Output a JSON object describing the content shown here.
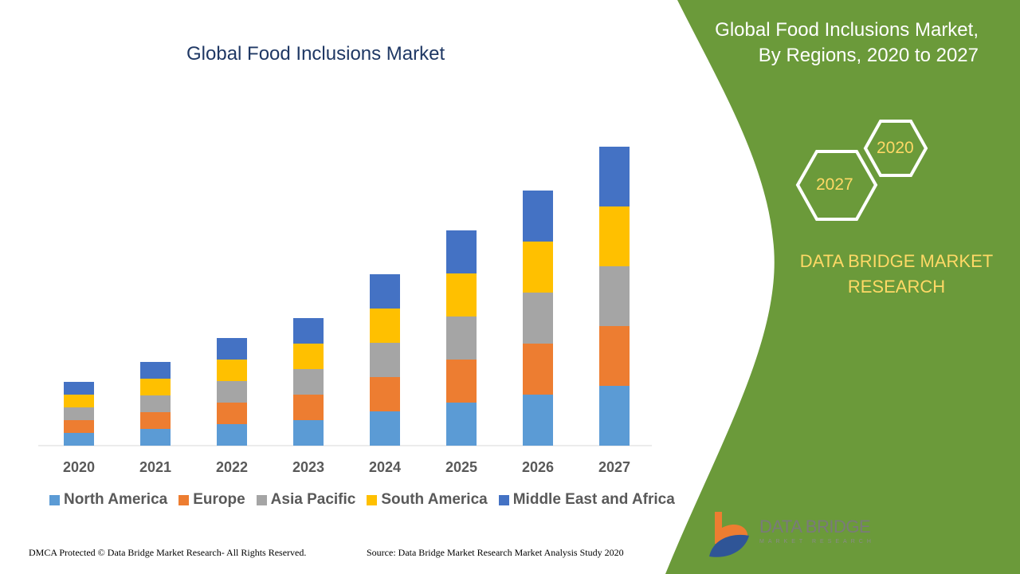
{
  "chart_data": {
    "type": "bar",
    "stacked": true,
    "title": "Global Food Inclusions Market",
    "categories": [
      "2020",
      "2021",
      "2022",
      "2023",
      "2024",
      "2025",
      "2026",
      "2027"
    ],
    "series": [
      {
        "name": "North America",
        "color": "#5b9bd5",
        "values": [
          1.6,
          2.1,
          2.7,
          3.2,
          4.3,
          5.4,
          6.4,
          7.5
        ]
      },
      {
        "name": "Europe",
        "color": "#ed7d31",
        "values": [
          1.6,
          2.1,
          2.7,
          3.2,
          4.3,
          5.4,
          6.4,
          7.5
        ]
      },
      {
        "name": "Asia Pacific",
        "color": "#a5a5a5",
        "values": [
          1.6,
          2.1,
          2.7,
          3.2,
          4.3,
          5.4,
          6.4,
          7.5
        ]
      },
      {
        "name": "South America",
        "color": "#ffc000",
        "values": [
          1.6,
          2.1,
          2.7,
          3.2,
          4.3,
          5.4,
          6.4,
          7.5
        ]
      },
      {
        "name": "Middle East and Africa",
        "color": "#4472c4",
        "values": [
          1.6,
          2.1,
          2.7,
          3.2,
          4.3,
          5.4,
          6.4,
          7.5
        ]
      }
    ],
    "xlabel": "",
    "ylabel": "",
    "grid": false,
    "legend": "bottom",
    "y_axis_shown": false
  },
  "side_panel": {
    "title_line1": "Global Food Inclusions Market,",
    "title_line2": "By Regions, 2020 to 2027",
    "hex_start": "2020",
    "hex_end": "2027",
    "brand_line1": "DATA BRIDGE MARKET",
    "brand_line2": "RESEARCH",
    "color": "#6b9a3a"
  },
  "footer": {
    "copyright": "DMCA Protected © Data Bridge Market Research- All Rights Reserved.",
    "source": "Source: Data Bridge Market Research Market Analysis Study 2020"
  },
  "logo": {
    "text": "DATA BRIDGE",
    "subtext": "MARKET RESEARCH"
  }
}
